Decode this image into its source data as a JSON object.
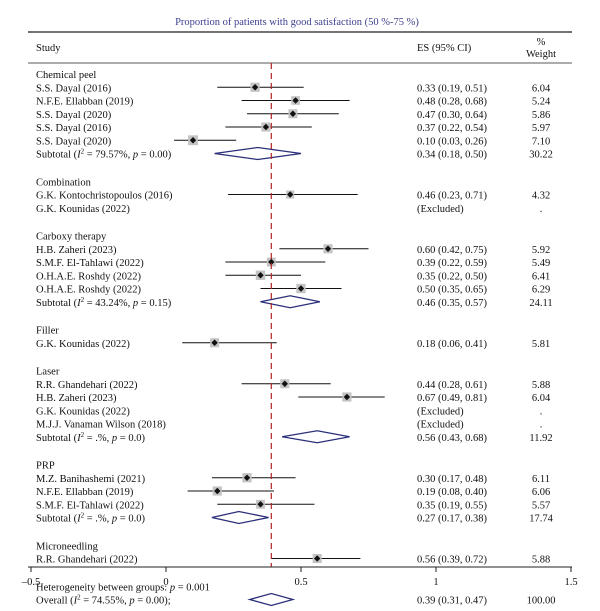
{
  "chart_data": {
    "type": "forest",
    "title": "Proportion of patients with good satisfaction (50 %-75 %)",
    "columns": {
      "study": "Study",
      "es": "ES (95% CI)",
      "weight_line1": "%",
      "weight_line2": "Weight"
    },
    "xlim": [
      -0.5,
      1.5
    ],
    "x_ticks": [
      -0.5,
      0,
      0.5,
      1,
      1.5
    ],
    "x_tick_labels": [
      "–0.5",
      "0",
      "0.5",
      "1",
      "1.5"
    ],
    "overall_line": 0.39,
    "null_line": 0,
    "groups": [
      {
        "name": "Chemical peel",
        "studies": [
          {
            "label": "S.S. Dayal (2016)",
            "es": 0.33,
            "lo": 0.19,
            "hi": 0.51,
            "es_text": "0.33 (0.19, 0.51)",
            "weight": "6.04"
          },
          {
            "label": "N.F.E. Ellabban (2019)",
            "es": 0.48,
            "lo": 0.28,
            "hi": 0.68,
            "es_text": "0.48 (0.28, 0.68)",
            "weight": "5.24"
          },
          {
            "label": "S.S. Dayal (2020)",
            "es": 0.47,
            "lo": 0.3,
            "hi": 0.64,
            "es_text": "0.47 (0.30, 0.64)",
            "weight": "5.86"
          },
          {
            "label": "S.S. Dayal (2016)",
            "es": 0.37,
            "lo": 0.22,
            "hi": 0.54,
            "es_text": "0.37 (0.22, 0.54)",
            "weight": "5.97"
          },
          {
            "label": "S.S. Dayal (2020)",
            "es": 0.1,
            "lo": 0.03,
            "hi": 0.26,
            "es_text": "0.10 (0.03, 0.26)",
            "weight": "7.10"
          }
        ],
        "subtotal": {
          "label_prefix": "Subtotal (",
          "i2_symbol": "I",
          "i2_sup": "2",
          "label_suffix": " = 79.57%, ",
          "p_symbol": "p",
          "p_text": " = 0.00)",
          "es": 0.34,
          "lo": 0.18,
          "hi": 0.5,
          "es_text": "0.34 (0.18, 0.50)",
          "weight": "30.22"
        }
      },
      {
        "name": "Combination",
        "studies": [
          {
            "label": "G.K. Kontochristopoulos (2016)",
            "es": 0.46,
            "lo": 0.23,
            "hi": 0.71,
            "es_text": "0.46 (0.23, 0.71)",
            "weight": "4.32"
          },
          {
            "label": "G.K. Kounidas (2022)",
            "es": null,
            "lo": null,
            "hi": null,
            "es_text": "(Excluded)",
            "weight": "."
          }
        ],
        "subtotal": null
      },
      {
        "name": "Carboxy therapy",
        "studies": [
          {
            "label": "H.B. Zaheri (2023)",
            "es": 0.6,
            "lo": 0.42,
            "hi": 0.75,
            "es_text": "0.60 (0.42, 0.75)",
            "weight": "5.92"
          },
          {
            "label": "S.M.F. El-Tahlawi (2022)",
            "es": 0.39,
            "lo": 0.22,
            "hi": 0.59,
            "es_text": "0.39 (0.22, 0.59)",
            "weight": "5.49"
          },
          {
            "label": "O.H.A.E. Roshdy (2022)",
            "es": 0.35,
            "lo": 0.22,
            "hi": 0.5,
            "es_text": "0.35 (0.22, 0.50)",
            "weight": "6.41"
          },
          {
            "label": "O.H.A.E. Roshdy (2022)",
            "es": 0.5,
            "lo": 0.35,
            "hi": 0.65,
            "es_text": "0.50 (0.35, 0.65)",
            "weight": "6.29"
          }
        ],
        "subtotal": {
          "label_prefix": "Subtotal (",
          "i2_symbol": "I",
          "i2_sup": "2",
          "label_suffix": " = 43.24%, ",
          "p_symbol": "p",
          "p_text": " = 0.15)",
          "es": 0.46,
          "lo": 0.35,
          "hi": 0.57,
          "es_text": "0.46 (0.35, 0.57)",
          "weight": "24.11"
        }
      },
      {
        "name": "Filler",
        "studies": [
          {
            "label": "G.K. Kounidas (2022)",
            "es": 0.18,
            "lo": 0.06,
            "hi": 0.41,
            "es_text": "0.18 (0.06, 0.41)",
            "weight": "5.81"
          }
        ],
        "subtotal": null
      },
      {
        "name": "Laser",
        "studies": [
          {
            "label": "R.R. Ghandehari (2022)",
            "es": 0.44,
            "lo": 0.28,
            "hi": 0.61,
            "es_text": "0.44 (0.28, 0.61)",
            "weight": "5.88"
          },
          {
            "label": "H.B. Zaheri (2023)",
            "es": 0.67,
            "lo": 0.49,
            "hi": 0.81,
            "es_text": "0.67 (0.49, 0.81)",
            "weight": "6.04"
          },
          {
            "label": "G.K. Kounidas (2022)",
            "es": null,
            "lo": null,
            "hi": null,
            "es_text": "(Excluded)",
            "weight": "."
          },
          {
            "label": "M.J.J. Vanaman Wilson (2018)",
            "es": null,
            "lo": null,
            "hi": null,
            "es_text": "(Excluded)",
            "weight": "."
          }
        ],
        "subtotal": {
          "label_prefix": "Subtotal (",
          "i2_symbol": "I",
          "i2_sup": "2",
          "label_suffix": " = .%, ",
          "p_symbol": "p",
          "p_text": " = 0.0)",
          "es": 0.56,
          "lo": 0.43,
          "hi": 0.68,
          "es_text": "0.56 (0.43, 0.68)",
          "weight": "11.92"
        }
      },
      {
        "name": "PRP",
        "studies": [
          {
            "label": "M.Z. Banihashemi (2021)",
            "es": 0.3,
            "lo": 0.17,
            "hi": 0.48,
            "es_text": "0.30 (0.17, 0.48)",
            "weight": "6.11"
          },
          {
            "label": "N.F.E. Ellabban (2019)",
            "es": 0.19,
            "lo": 0.08,
            "hi": 0.4,
            "es_text": "0.19 (0.08, 0.40)",
            "weight": "6.06"
          },
          {
            "label": "S.M.F. El-Tahlawi (2022)",
            "es": 0.35,
            "lo": 0.19,
            "hi": 0.55,
            "es_text": "0.35 (0.19, 0.55)",
            "weight": "5.57"
          }
        ],
        "subtotal": {
          "label_prefix": "Subtotal (",
          "i2_symbol": "I",
          "i2_sup": "2",
          "label_suffix": " = .%, ",
          "p_symbol": "p",
          "p_text": " = 0.0)",
          "es": 0.27,
          "lo": 0.17,
          "hi": 0.38,
          "es_text": "0.27 (0.17, 0.38)",
          "weight": "17.74"
        }
      },
      {
        "name": "Microneedling",
        "studies": [
          {
            "label": "R.R. Ghandehari (2022)",
            "es": 0.56,
            "lo": 0.39,
            "hi": 0.72,
            "es_text": "0.56 (0.39, 0.72)",
            "weight": "5.88"
          }
        ],
        "subtotal": null
      }
    ],
    "heterogeneity": {
      "prefix": "Heterogeneity between groups: ",
      "p_symbol": "p",
      "text": " = 0.001"
    },
    "overall": {
      "label_prefix": "Overall (",
      "i2_symbol": "I",
      "i2_sup": "2",
      "label_suffix": " = 74.55%, ",
      "p_symbol": "p",
      "p_text": " = 0.00);",
      "es": 0.39,
      "lo": 0.31,
      "hi": 0.47,
      "es_text": "0.39 (0.31, 0.47)",
      "weight": "100.00"
    },
    "colors": {
      "title": "#3b3f8f",
      "diamond": "#2a2f7a",
      "square": "#c4c4c4",
      "point": "#111111",
      "overall_line": "#b22222",
      "rule": "#222222"
    }
  }
}
